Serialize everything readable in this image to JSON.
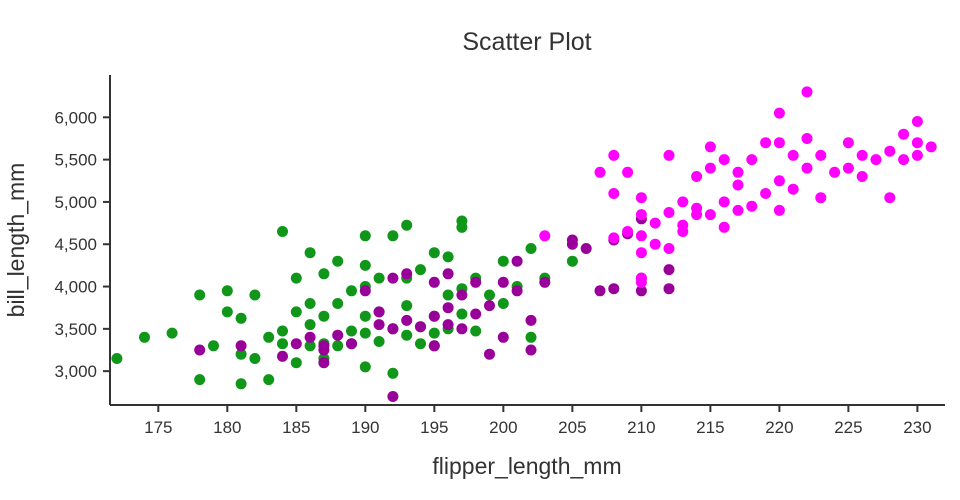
{
  "chart_data": {
    "type": "scatter",
    "title": "Scatter Plot",
    "xlabel": "flipper_length_mm",
    "ylabel": "bill_length_mm",
    "xlim": [
      171.5,
      232
    ],
    "ylim": [
      2600,
      6500
    ],
    "grid": false,
    "legend": "none",
    "axis_color": "#333333",
    "x_ticks": [
      175,
      180,
      185,
      190,
      195,
      200,
      205,
      210,
      215,
      220,
      225,
      230
    ],
    "x_tick_labels": [
      "175",
      "180",
      "185",
      "190",
      "195",
      "200",
      "205",
      "210",
      "215",
      "220",
      "225",
      "230"
    ],
    "y_ticks": [
      3000,
      3500,
      4000,
      4500,
      5000,
      5500,
      6000
    ],
    "y_tick_labels": [
      "3,000",
      "3,500",
      "4,000",
      "4,500",
      "5,000",
      "5,500",
      "6,000"
    ],
    "marker_radius": 5.5,
    "series": [
      {
        "name": "green",
        "color": "#109618",
        "points": [
          [
            172,
            3150
          ],
          [
            174,
            3400
          ],
          [
            176,
            3450
          ],
          [
            178,
            2900
          ],
          [
            178,
            3900
          ],
          [
            179,
            3300
          ],
          [
            180,
            3700
          ],
          [
            180,
            3950
          ],
          [
            181,
            3200
          ],
          [
            181,
            3625
          ],
          [
            181,
            2850
          ],
          [
            182,
            3150
          ],
          [
            182,
            3900
          ],
          [
            183,
            3400
          ],
          [
            183,
            2900
          ],
          [
            184,
            3325
          ],
          [
            184,
            4650
          ],
          [
            184,
            3475
          ],
          [
            185,
            3100
          ],
          [
            185,
            3700
          ],
          [
            185,
            4100
          ],
          [
            186,
            3300
          ],
          [
            186,
            3550
          ],
          [
            186,
            3800
          ],
          [
            186,
            4400
          ],
          [
            187,
            3150
          ],
          [
            187,
            3325
          ],
          [
            187,
            3650
          ],
          [
            187,
            4150
          ],
          [
            188,
            3300
          ],
          [
            188,
            3800
          ],
          [
            188,
            4300
          ],
          [
            189,
            3325
          ],
          [
            189,
            3475
          ],
          [
            189,
            3950
          ],
          [
            190,
            3050
          ],
          [
            190,
            3450
          ],
          [
            190,
            3650
          ],
          [
            190,
            4000
          ],
          [
            190,
            4250
          ],
          [
            190,
            4600
          ],
          [
            191,
            3350
          ],
          [
            191,
            3700
          ],
          [
            191,
            4100
          ],
          [
            192,
            3500
          ],
          [
            192,
            4600
          ],
          [
            192,
            2975
          ],
          [
            193,
            3425
          ],
          [
            193,
            3775
          ],
          [
            193,
            4100
          ],
          [
            193,
            4725
          ],
          [
            194,
            3325
          ],
          [
            194,
            3525
          ],
          [
            194,
            4200
          ],
          [
            195,
            3300
          ],
          [
            195,
            3450
          ],
          [
            195,
            3650
          ],
          [
            195,
            4400
          ],
          [
            196,
            3500
          ],
          [
            196,
            3900
          ],
          [
            196,
            4350
          ],
          [
            197,
            3675
          ],
          [
            197,
            3975
          ],
          [
            197,
            4700
          ],
          [
            197,
            4775
          ],
          [
            198,
            3475
          ],
          [
            198,
            4100
          ],
          [
            199,
            3900
          ],
          [
            200,
            3800
          ],
          [
            200,
            4300
          ],
          [
            201,
            4000
          ],
          [
            202,
            3400
          ],
          [
            202,
            4450
          ],
          [
            203,
            4100
          ],
          [
            205,
            4300
          ]
        ]
      },
      {
        "name": "purple",
        "color": "#990099",
        "points": [
          [
            178,
            3250
          ],
          [
            181,
            3300
          ],
          [
            184,
            3175
          ],
          [
            185,
            3325
          ],
          [
            186,
            3400
          ],
          [
            187,
            3100
          ],
          [
            187,
            3250
          ],
          [
            187,
            3300
          ],
          [
            188,
            3425
          ],
          [
            189,
            3325
          ],
          [
            190,
            3950
          ],
          [
            191,
            3550
          ],
          [
            191,
            3700
          ],
          [
            192,
            2700
          ],
          [
            192,
            3500
          ],
          [
            192,
            4100
          ],
          [
            193,
            3600
          ],
          [
            193,
            4150
          ],
          [
            194,
            3525
          ],
          [
            195,
            3300
          ],
          [
            195,
            3650
          ],
          [
            195,
            4050
          ],
          [
            196,
            3550
          ],
          [
            196,
            3750
          ],
          [
            196,
            4150
          ],
          [
            197,
            3500
          ],
          [
            197,
            3900
          ],
          [
            198,
            3675
          ],
          [
            198,
            4050
          ],
          [
            199,
            3200
          ],
          [
            199,
            3775
          ],
          [
            200,
            3400
          ],
          [
            200,
            4050
          ],
          [
            201,
            3950
          ],
          [
            201,
            4300
          ],
          [
            202,
            3250
          ],
          [
            202,
            3600
          ],
          [
            203,
            4050
          ],
          [
            205,
            4500
          ],
          [
            205,
            4550
          ],
          [
            206,
            4450
          ],
          [
            207,
            3950
          ],
          [
            208,
            3975
          ],
          [
            208,
            4550
          ],
          [
            209,
            4625
          ],
          [
            210,
            4100
          ],
          [
            210,
            4800
          ],
          [
            210,
            3950
          ],
          [
            212,
            3975
          ],
          [
            212,
            4200
          ]
        ]
      },
      {
        "name": "magenta",
        "color": "#ff00ff",
        "points": [
          [
            203,
            4600
          ],
          [
            207,
            5350
          ],
          [
            208,
            4575
          ],
          [
            208,
            5100
          ],
          [
            208,
            5550
          ],
          [
            209,
            4650
          ],
          [
            209,
            5350
          ],
          [
            210,
            4050
          ],
          [
            210,
            4100
          ],
          [
            210,
            4400
          ],
          [
            210,
            4600
          ],
          [
            210,
            4850
          ],
          [
            210,
            5050
          ],
          [
            211,
            4500
          ],
          [
            211,
            4750
          ],
          [
            212,
            4450
          ],
          [
            212,
            4875
          ],
          [
            212,
            5550
          ],
          [
            213,
            4650
          ],
          [
            213,
            5000
          ],
          [
            213,
            4725
          ],
          [
            214,
            4850
          ],
          [
            214,
            4925
          ],
          [
            214,
            5300
          ],
          [
            215,
            4850
          ],
          [
            215,
            5400
          ],
          [
            215,
            5650
          ],
          [
            216,
            4700
          ],
          [
            216,
            5000
          ],
          [
            216,
            5500
          ],
          [
            217,
            4900
          ],
          [
            217,
            5200
          ],
          [
            217,
            5350
          ],
          [
            218,
            4950
          ],
          [
            218,
            5500
          ],
          [
            219,
            5100
          ],
          [
            219,
            5700
          ],
          [
            220,
            4900
          ],
          [
            220,
            5250
          ],
          [
            220,
            5700
          ],
          [
            220,
            6050
          ],
          [
            221,
            5150
          ],
          [
            221,
            5550
          ],
          [
            222,
            5400
          ],
          [
            222,
            5750
          ],
          [
            222,
            6300
          ],
          [
            223,
            5050
          ],
          [
            223,
            5550
          ],
          [
            224,
            5350
          ],
          [
            225,
            5400
          ],
          [
            225,
            5700
          ],
          [
            226,
            5300
          ],
          [
            226,
            5550
          ],
          [
            227,
            5500
          ],
          [
            228,
            5050
          ],
          [
            228,
            5600
          ],
          [
            229,
            5500
          ],
          [
            229,
            5800
          ],
          [
            230,
            5550
          ],
          [
            230,
            5700
          ],
          [
            230,
            5950
          ],
          [
            231,
            5650
          ]
        ]
      }
    ]
  }
}
